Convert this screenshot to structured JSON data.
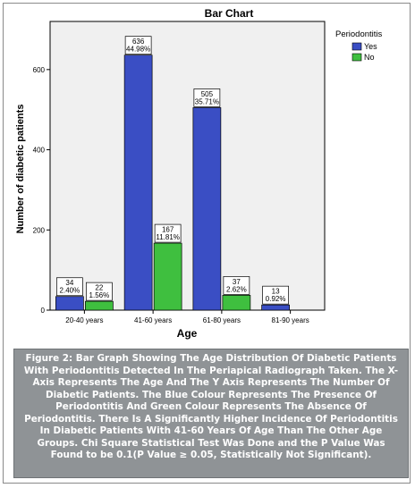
{
  "chart_data": {
    "type": "bar",
    "title": "Bar Chart",
    "xlabel": "Age",
    "ylabel": "Number of diabetic patients",
    "categories": [
      "20-40 years",
      "41-60 years",
      "61-80 years",
      "81-90 years"
    ],
    "series": [
      {
        "name": "Yes",
        "color": "#3a4ec4",
        "values": [
          34,
          636,
          505,
          13
        ],
        "labels": [
          "2.40%",
          "44.98%",
          "35.71%",
          "0.92%"
        ]
      },
      {
        "name": "No",
        "color": "#3fbf3f",
        "values": [
          22,
          167,
          37,
          null
        ],
        "labels": [
          "1.56%",
          "11.81%",
          "2.62%",
          null
        ]
      }
    ],
    "ylim": [
      0,
      720
    ],
    "yticks": [
      0,
      200,
      400,
      600
    ],
    "grid": false,
    "legend": {
      "title": "Periodontitis",
      "position": "right"
    }
  },
  "caption": "Figure 2: Bar Graph Showing The Age Distribution Of Diabetic Patients With Periodontitis Detected In The Periapical Radiograph Taken. The X-Axis Represents The Age And The Y Axis Represents The Number Of Diabetic Patients. The Blue Colour Represents The Presence Of Periodontitis And Green Colour Represents The Absence Of Periodontitis. There Is A Significantly Higher Incidence Of Periodontitis In Diabetic Patients With 41-60 Years Of Age Than The Other Age Groups. Chi Square Statistical Test Was Done and the P Value Was Found to be 0.1(P Value ≥ 0.05, Statistically Not Significant)."
}
